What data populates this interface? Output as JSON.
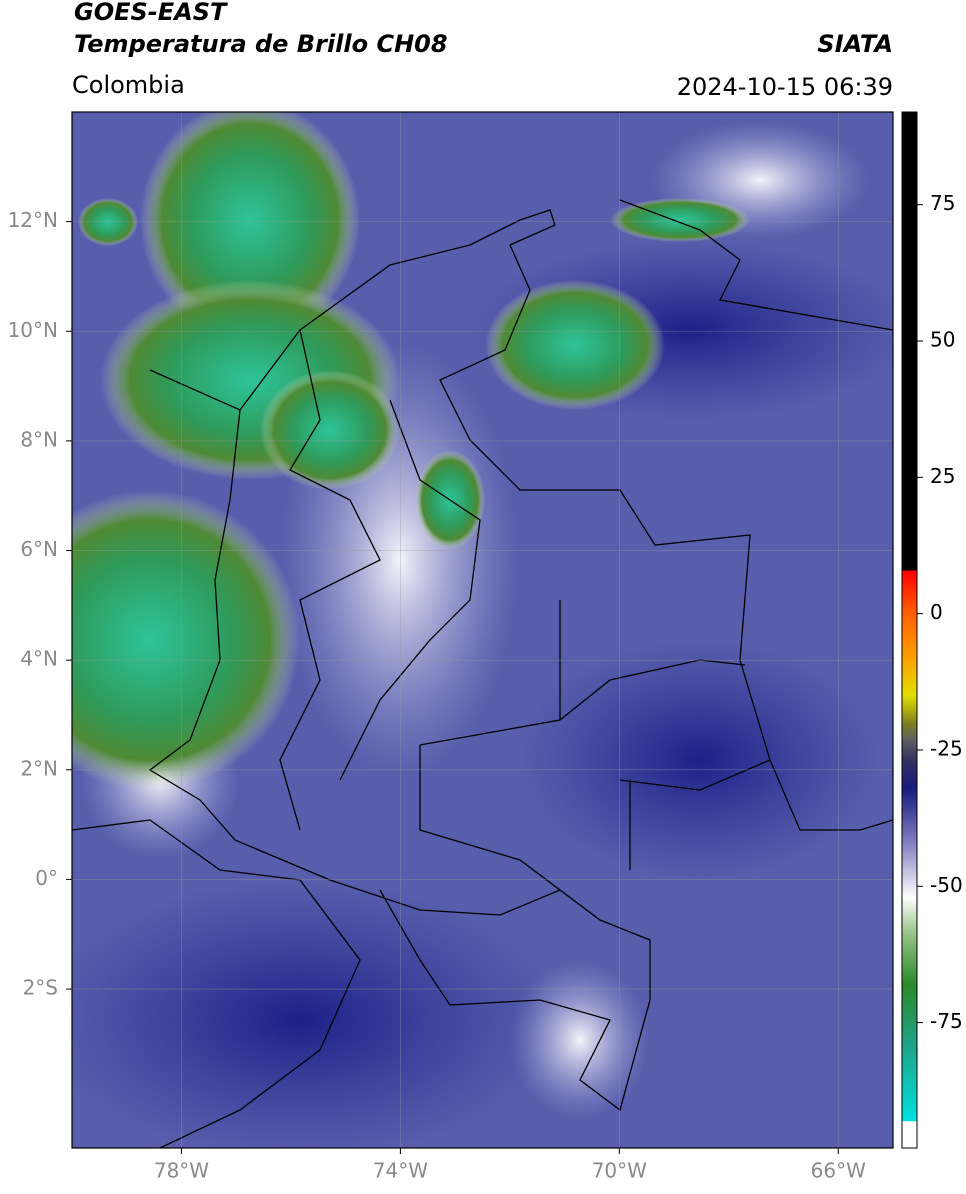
{
  "chart_data": {
    "type": "map",
    "title": "GOES-EAST",
    "subtitle": "Temperatura de Brillo CH08",
    "source": "SIATA",
    "region": "Colombia",
    "timestamp": "2024-10-15 06:39",
    "xlim": [
      -80,
      -65
    ],
    "ylim": [
      -4.9,
      14
    ],
    "xticks": [
      {
        "value": -78,
        "label": "78°W"
      },
      {
        "value": -74,
        "label": "74°W"
      },
      {
        "value": -70,
        "label": "70°W"
      },
      {
        "value": -66,
        "label": "66°W"
      }
    ],
    "yticks": [
      {
        "value": 12,
        "label": "12°N"
      },
      {
        "value": 10,
        "label": "10°N"
      },
      {
        "value": 8,
        "label": "8°N"
      },
      {
        "value": 6,
        "label": "6°N"
      },
      {
        "value": 4,
        "label": "4°N"
      },
      {
        "value": 2,
        "label": "2°N"
      },
      {
        "value": 0,
        "label": "0°"
      },
      {
        "value": -2,
        "label": "2°S"
      }
    ],
    "grid": true,
    "colorbar": {
      "lim": [
        -98,
        92
      ],
      "ticks": [
        75,
        50,
        25,
        0,
        -25,
        -50,
        -75
      ],
      "stops": [
        {
          "value": -98,
          "color": "#ffffff"
        },
        {
          "value": -93,
          "color": "#ffffff"
        },
        {
          "value": -93,
          "color": "#00e0e0"
        },
        {
          "value": -78,
          "color": "#20a080"
        },
        {
          "value": -68,
          "color": "#2a8a2a"
        },
        {
          "value": -58,
          "color": "#a0c890"
        },
        {
          "value": -52,
          "color": "#ffffff"
        },
        {
          "value": -42,
          "color": "#8080c0"
        },
        {
          "value": -32,
          "color": "#1a1a80"
        },
        {
          "value": -27,
          "color": "#303060"
        },
        {
          "value": -23,
          "color": "#606060"
        },
        {
          "value": -20,
          "color": "#808020"
        },
        {
          "value": -15,
          "color": "#e0e000"
        },
        {
          "value": -8,
          "color": "#ffa000"
        },
        {
          "value": 0,
          "color": "#ff6000"
        },
        {
          "value": 8,
          "color": "#ff0000"
        },
        {
          "value": 8,
          "color": "#000000"
        },
        {
          "value": 92,
          "color": "#000000"
        }
      ]
    }
  }
}
